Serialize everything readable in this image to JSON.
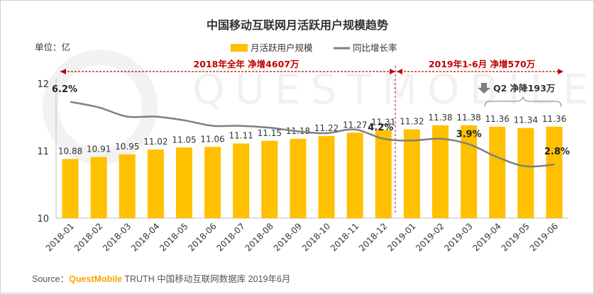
{
  "chart_data": {
    "type": "bar",
    "title": "中国移动互联网月活跃用户规模趋势",
    "unit_label": "单位：亿",
    "categories": [
      "2018-01",
      "2018-02",
      "2018-03",
      "2018-04",
      "2018-05",
      "2018-06",
      "2018-07",
      "2018-08",
      "2018-09",
      "2018-10",
      "2018-11",
      "2018-12",
      "2019-01",
      "2019-02",
      "2019-03",
      "2019-04",
      "2019-05",
      "2019-06"
    ],
    "series": [
      {
        "name": "月活跃用户规模",
        "type": "bar",
        "values": [
          10.88,
          10.91,
          10.95,
          11.02,
          11.05,
          11.06,
          11.11,
          11.15,
          11.18,
          11.22,
          11.27,
          11.31,
          11.32,
          11.38,
          11.38,
          11.36,
          11.34,
          11.36
        ],
        "color": "#ffc000"
      },
      {
        "name": "同比增长率",
        "type": "line",
        "values_percent": [
          6.2,
          5.9,
          5.4,
          5.4,
          5.2,
          4.9,
          4.9,
          4.8,
          4.6,
          4.5,
          4.7,
          4.2,
          4.1,
          4.2,
          3.9,
          3.2,
          2.7,
          2.8
        ],
        "color": "#7f7f7f"
      }
    ],
    "y_ticks": [
      10,
      11,
      12
    ],
    "ylim": [
      10,
      12
    ],
    "legend_position": "top-center",
    "line_labels": [
      {
        "index": 0,
        "text": "6.2%"
      },
      {
        "index": 11,
        "text": "4.2%"
      },
      {
        "index": 14,
        "text": "3.9%"
      },
      {
        "index": 17,
        "text": "2.8%"
      }
    ],
    "annotations": {
      "period_2018": "2018年全年  净增4607万",
      "period_2019": "2019年1-6月  净增570万",
      "q2": "Q2  净降193万"
    },
    "source_label": "Source：",
    "source_brand": "QuestMobile",
    "source_text": " TRUTH 中国移动互联网数据库 2019年6月",
    "colors": {
      "bar": "#ffc000",
      "line": "#7f7f7f",
      "annotation": "#c00000",
      "axis": "#bfbfbf"
    }
  }
}
